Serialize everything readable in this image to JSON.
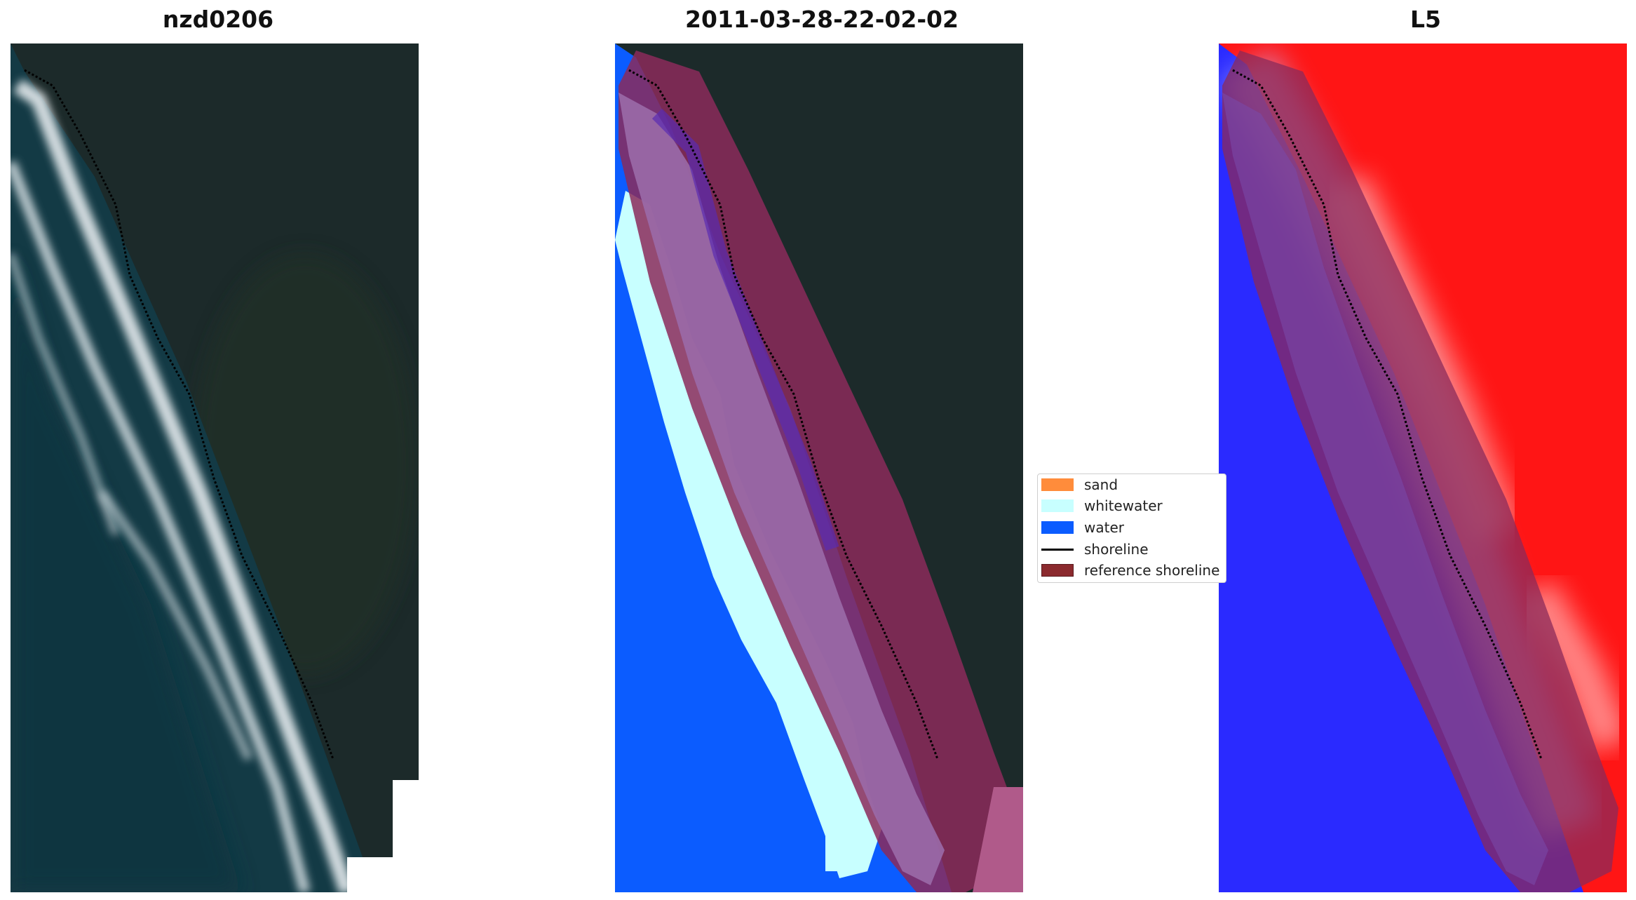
{
  "panels": [
    {
      "title": "nzd0206"
    },
    {
      "title": "2011-03-28-22-02-02"
    },
    {
      "title": "L5"
    }
  ],
  "legend": {
    "items": [
      {
        "label": "sand",
        "kind": "patch",
        "color": "#ff8c3b"
      },
      {
        "label": "whitewater",
        "kind": "patch",
        "color": "#c8ffff"
      },
      {
        "label": "water",
        "kind": "patch",
        "color": "#0b5cff"
      },
      {
        "label": "shoreline",
        "kind": "line",
        "color": "#000000"
      },
      {
        "label": "reference shoreline",
        "kind": "patch",
        "color": "#8b2a2e"
      }
    ]
  },
  "colors": {
    "land": "#1c2a2a",
    "ocean": "#123843",
    "surf": "#e6ecef",
    "water_class": "#0b5cff",
    "whitewater_class": "#c8ffff",
    "reference_buffer": "#8b2a5a",
    "index_land": "#ff1515",
    "index_water": "#2a2aff"
  }
}
